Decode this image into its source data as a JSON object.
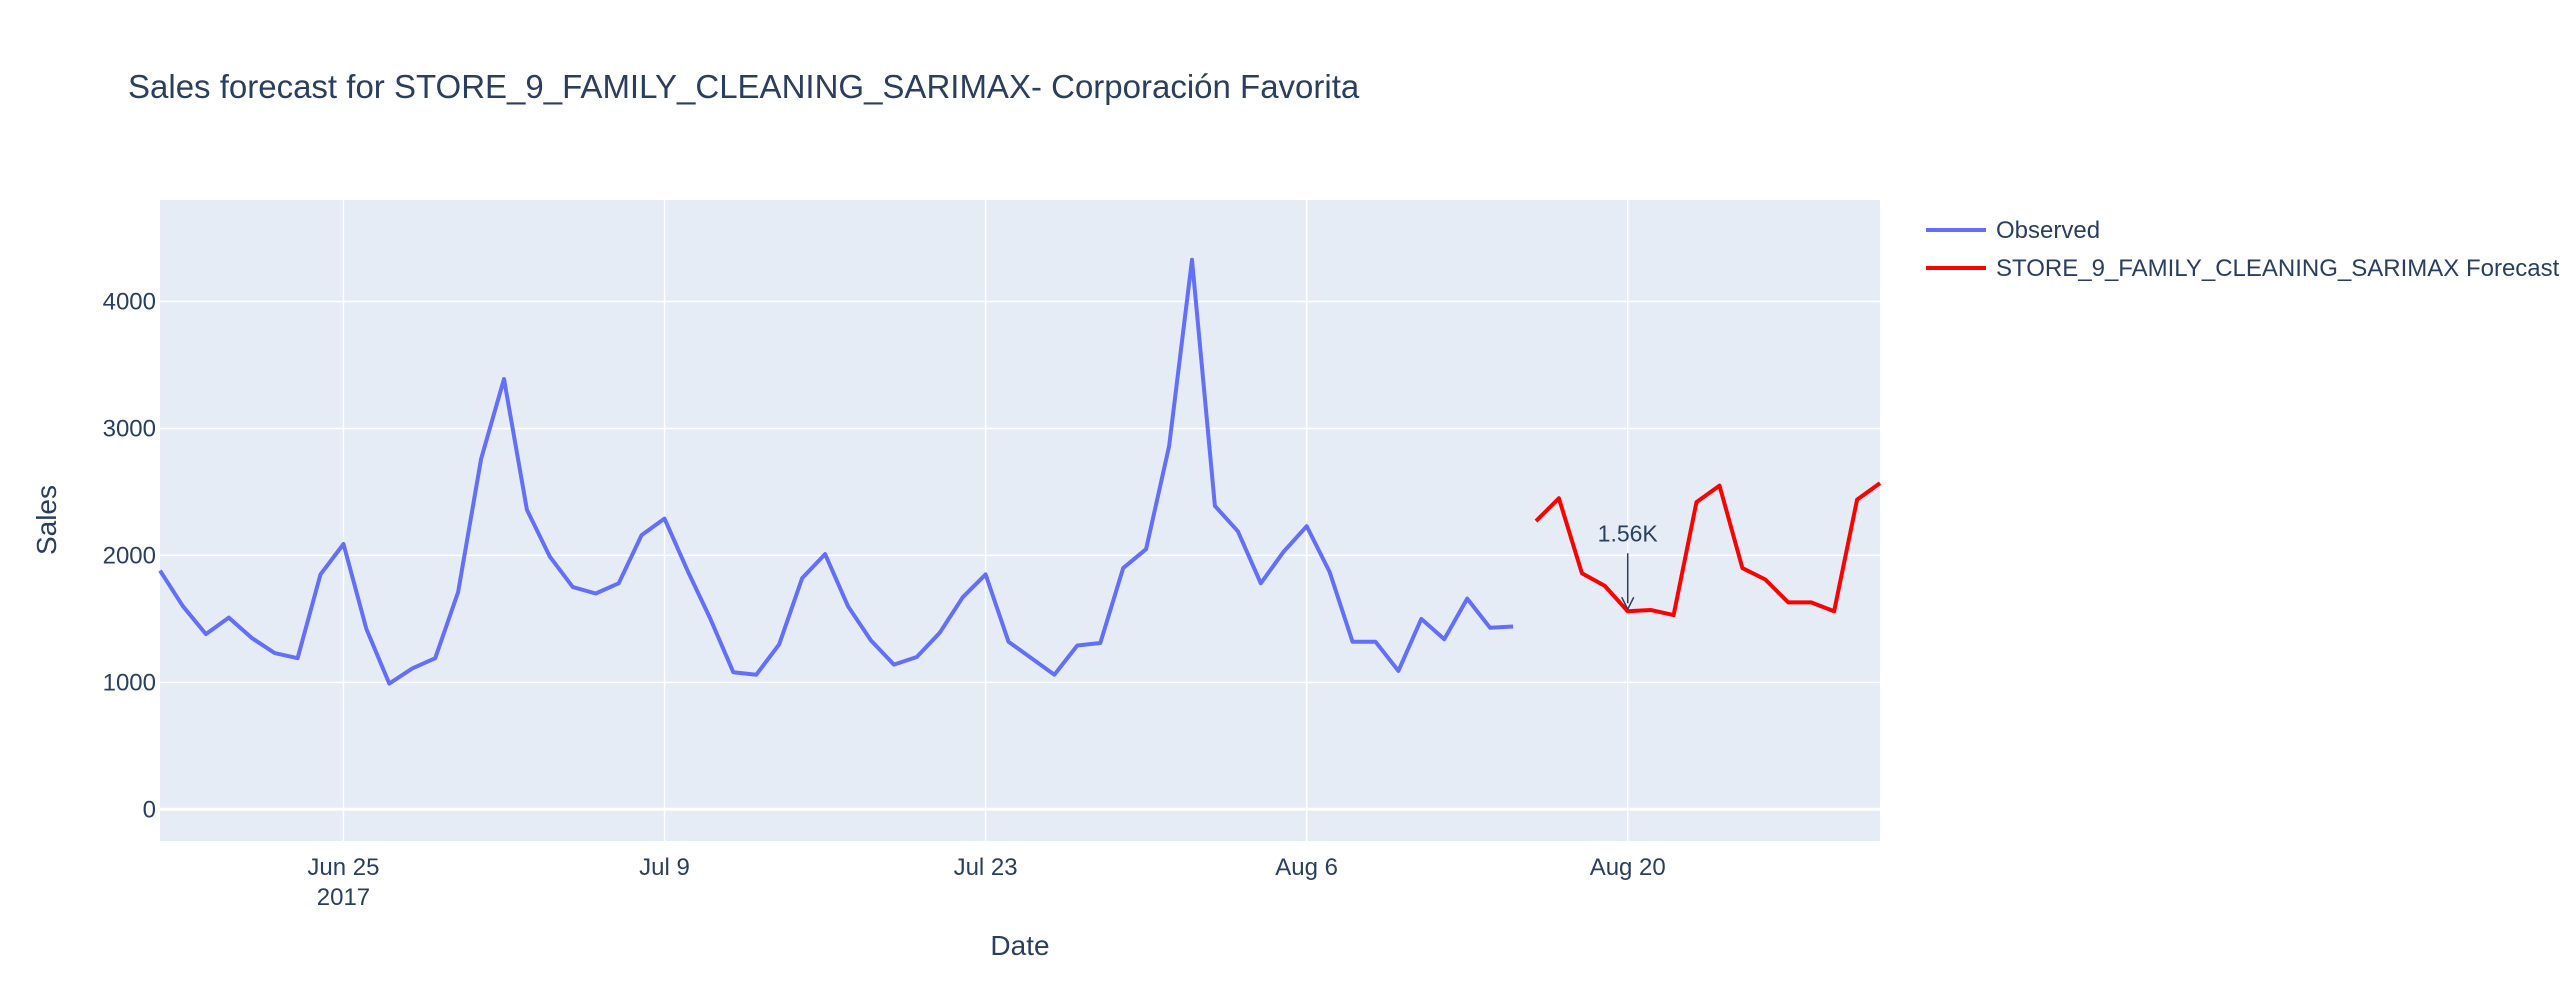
{
  "chart_data": {
    "type": "line",
    "title": "Sales forecast for STORE_9_FAMILY_CLEANING_SARIMAX- Corporación Favorita",
    "xlabel": "Date",
    "ylabel": "Sales",
    "ylim": [
      -250,
      4800
    ],
    "xlim": [
      "2017-06-17",
      "2017-08-31"
    ],
    "x_ticks": [
      {
        "date": "2017-06-25",
        "label": "Jun 25",
        "sublabel": "2017"
      },
      {
        "date": "2017-07-09",
        "label": "Jul 9",
        "sublabel": ""
      },
      {
        "date": "2017-07-23",
        "label": "Jul 23",
        "sublabel": ""
      },
      {
        "date": "2017-08-06",
        "label": "Aug 6",
        "sublabel": ""
      },
      {
        "date": "2017-08-20",
        "label": "Aug 20",
        "sublabel": ""
      }
    ],
    "y_ticks": [
      0,
      1000,
      2000,
      3000,
      4000
    ],
    "grid": true,
    "legend_position": "top-right",
    "colors": {
      "plot_bg": "#e5ecf6",
      "grid": "#ffffff",
      "observed": "#636efa",
      "forecast": "#ff0000",
      "text": "#2a3f5f"
    },
    "series": [
      {
        "name": "Observed",
        "color": "#636efa",
        "x": [
          "2017-06-17",
          "2017-06-18",
          "2017-06-19",
          "2017-06-20",
          "2017-06-21",
          "2017-06-22",
          "2017-06-23",
          "2017-06-24",
          "2017-06-25",
          "2017-06-26",
          "2017-06-27",
          "2017-06-28",
          "2017-06-29",
          "2017-06-30",
          "2017-07-01",
          "2017-07-02",
          "2017-07-03",
          "2017-07-04",
          "2017-07-05",
          "2017-07-06",
          "2017-07-07",
          "2017-07-08",
          "2017-07-09",
          "2017-07-10",
          "2017-07-11",
          "2017-07-12",
          "2017-07-13",
          "2017-07-14",
          "2017-07-15",
          "2017-07-16",
          "2017-07-17",
          "2017-07-18",
          "2017-07-19",
          "2017-07-20",
          "2017-07-21",
          "2017-07-22",
          "2017-07-23",
          "2017-07-24",
          "2017-07-25",
          "2017-07-26",
          "2017-07-27",
          "2017-07-28",
          "2017-07-29",
          "2017-07-30",
          "2017-07-31",
          "2017-08-01",
          "2017-08-02",
          "2017-08-03",
          "2017-08-04",
          "2017-08-05",
          "2017-08-06",
          "2017-08-07",
          "2017-08-08",
          "2017-08-09",
          "2017-08-10",
          "2017-08-11",
          "2017-08-12",
          "2017-08-13",
          "2017-08-14",
          "2017-08-15"
        ],
        "values": [
          1880,
          1600,
          1380,
          1510,
          1350,
          1230,
          1190,
          1850,
          2090,
          1420,
          990,
          1110,
          1190,
          1710,
          2760,
          3390,
          2360,
          1990,
          1750,
          1700,
          1780,
          2160,
          2290,
          1880,
          1500,
          1080,
          1060,
          1300,
          1820,
          2010,
          1600,
          1330,
          1140,
          1200,
          1390,
          1670,
          1850,
          1320,
          1190,
          1060,
          1290,
          1310,
          1900,
          2050,
          2860,
          4330,
          2390,
          2190,
          1780,
          2030,
          2230,
          1870,
          1320,
          1320,
          1090,
          1500,
          1340,
          1660,
          1430,
          1440
        ]
      },
      {
        "name": "STORE_9_FAMILY_CLEANING_SARIMAX Forecast",
        "color": "#ff0000",
        "x": [
          "2017-08-16",
          "2017-08-17",
          "2017-08-18",
          "2017-08-19",
          "2017-08-20",
          "2017-08-21",
          "2017-08-22",
          "2017-08-23",
          "2017-08-24",
          "2017-08-25",
          "2017-08-26",
          "2017-08-27",
          "2017-08-28",
          "2017-08-29",
          "2017-08-30",
          "2017-08-31"
        ],
        "values": [
          2270,
          2450,
          1860,
          1760,
          1560,
          1570,
          1530,
          2420,
          2550,
          1900,
          1810,
          1630,
          1630,
          1560,
          2440,
          2570
        ]
      }
    ],
    "annotations": [
      {
        "x": "2017-08-20",
        "y": 1560,
        "text": "1.56K"
      }
    ]
  }
}
